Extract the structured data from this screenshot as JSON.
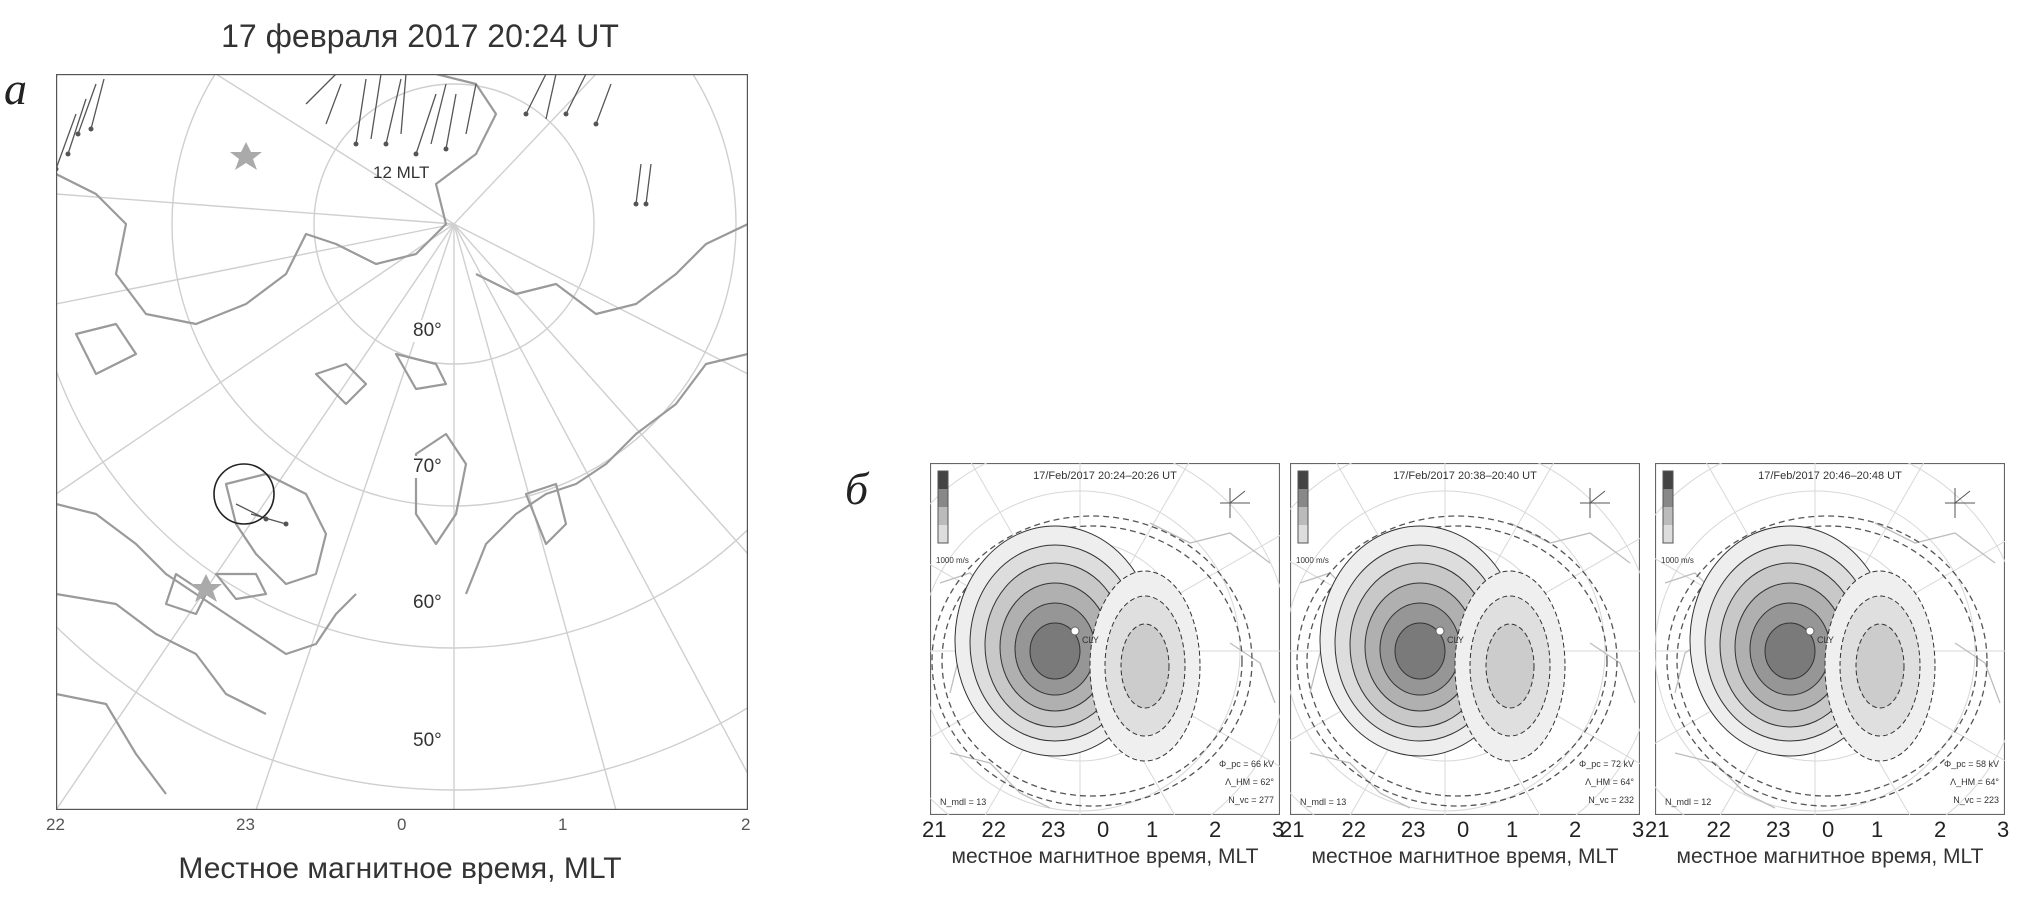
{
  "panel_a": {
    "letter": "а",
    "title": "17 февраля 2017 20:24 UT",
    "xlabel": "Местное магнитное время, MLT",
    "x_ticks": [
      "22",
      "23",
      "0",
      "1",
      "2"
    ],
    "lat_labels": [
      "80°",
      "70°",
      "60°",
      "50°"
    ],
    "mlt_label": "12 MLT"
  },
  "panel_b": {
    "letter": "б",
    "xlabel": "местное магнитное время, MLT",
    "x_ticks": [
      "21",
      "22",
      "23",
      "0",
      "1",
      "2",
      "3"
    ],
    "colorbar_unit": "1000 m/s",
    "maps": [
      {
        "title": "17/Feb/2017 20:24–20:26 UT",
        "phi": "Φ_pc = 66 kV",
        "lambda": "Λ_HM = 62°",
        "n": "N_vc = 277",
        "nmodel": "N_mdl = 13",
        "stn": "CLY"
      },
      {
        "title": "17/Feb/2017 20:38–20:40 UT",
        "phi": "Φ_pc = 72 kV",
        "lambda": "Λ_HM = 64°",
        "n": "N_vc = 232",
        "nmodel": "N_mdl = 13",
        "stn": "CLY"
      },
      {
        "title": "17/Feb/2017 20:46–20:48 UT",
        "phi": "Φ_pc = 58 kV",
        "lambda": "Λ_HM = 64°",
        "n": "N_vc = 223",
        "nmodel": "N_mdl = 12",
        "stn": "CLY"
      }
    ]
  }
}
